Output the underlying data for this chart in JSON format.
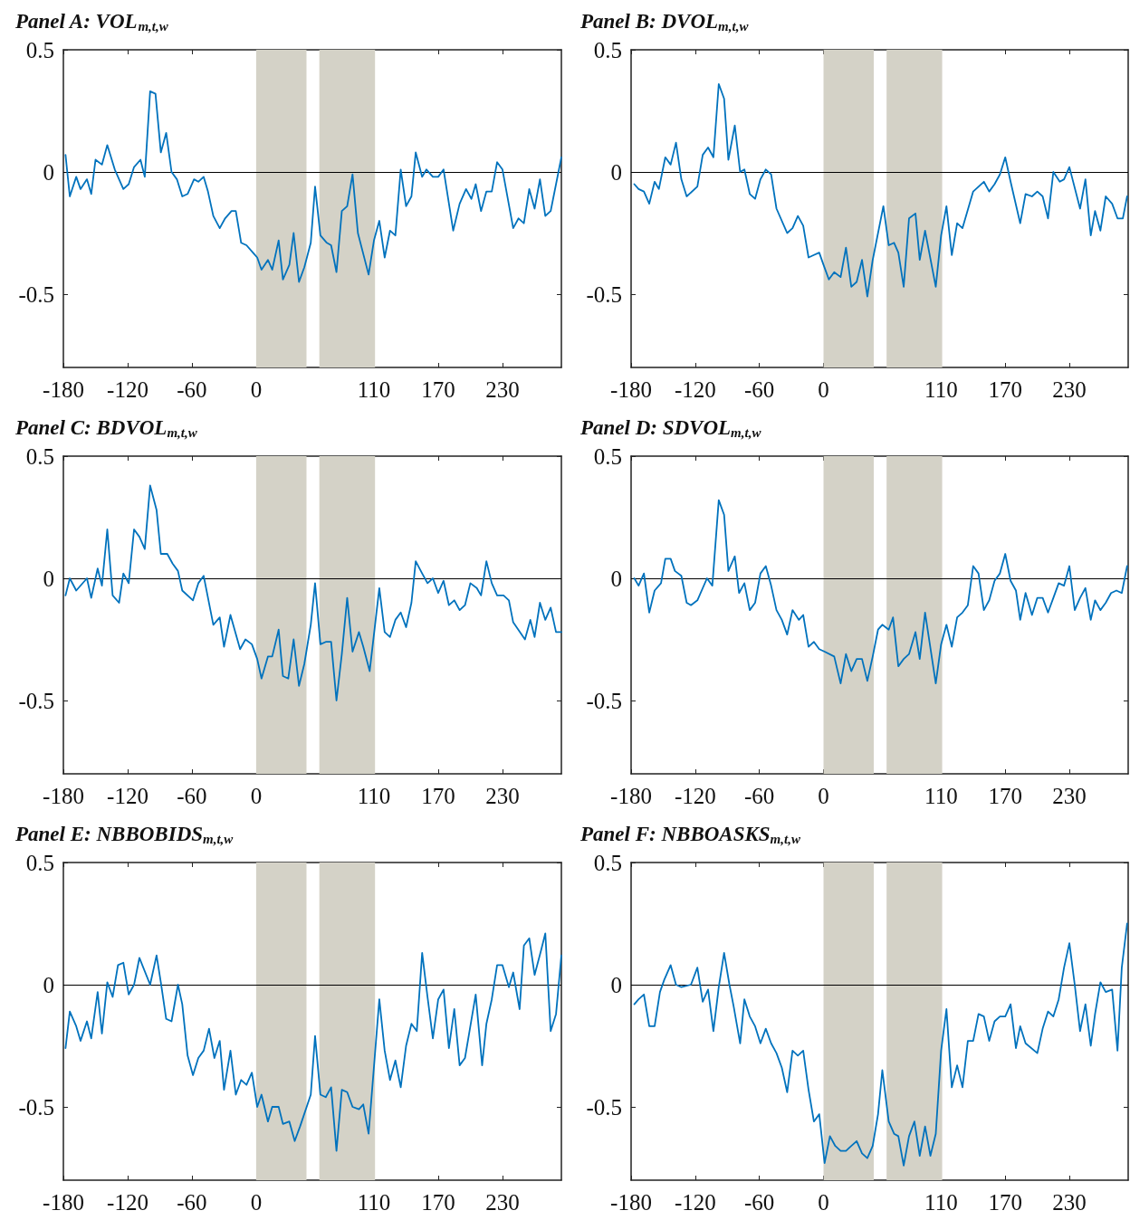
{
  "chart_data": [
    {
      "type": "line",
      "title": "Panel A: VOL$_{m,t,w}$",
      "xlim": [
        -180,
        285
      ],
      "xticks": [
        -180,
        -120,
        -60,
        0,
        110,
        170,
        230
      ],
      "ylim": [
        -0.8,
        0.5
      ],
      "yticks": [
        -0.5,
        0,
        0.5
      ],
      "marker": "none",
      "line_style": "solid",
      "ref_lines": [
        {
          "axis": "y",
          "value": 0,
          "color": "#000000"
        }
      ],
      "bands": [
        {
          "axis": "x",
          "from": 0,
          "to": 47,
          "color": "#d4d2c7"
        },
        {
          "axis": "x",
          "from": 59,
          "to": 111,
          "color": "#d4d2c7"
        }
      ],
      "series": [
        {
          "color": "#0072bd",
          "x": [
            -178,
            -174,
            -168,
            -164,
            -158,
            -154,
            -150,
            -144,
            -139,
            -132,
            -124,
            -119,
            -114,
            -108,
            -104,
            -99,
            -94,
            -89,
            -84,
            -79,
            -74,
            -69,
            -64,
            -58,
            -54,
            -49,
            -45,
            -40,
            -34,
            -29,
            -23,
            -19,
            -14,
            -9,
            -3,
            1,
            5,
            11,
            15,
            21,
            25,
            31,
            35,
            40,
            45,
            51,
            55,
            60,
            66,
            70,
            75,
            80,
            85,
            90,
            95,
            105,
            110,
            115,
            120,
            125,
            130,
            135,
            140,
            145,
            149,
            155,
            159,
            165,
            170,
            175,
            184,
            190,
            196,
            201,
            205,
            210,
            215,
            220,
            225,
            230,
            240,
            245,
            250,
            255,
            260,
            265,
            270,
            275,
            285
          ],
          "values": [
            0.07,
            -0.1,
            -0.02,
            -0.07,
            -0.03,
            -0.09,
            0.05,
            0.03,
            0.11,
            0.01,
            -0.07,
            -0.05,
            0.02,
            0.05,
            -0.02,
            0.33,
            0.32,
            0.08,
            0.16,
            0,
            -0.03,
            -0.1,
            -0.09,
            -0.03,
            -0.04,
            -0.02,
            -0.08,
            -0.18,
            -0.23,
            -0.19,
            -0.16,
            -0.16,
            -0.29,
            -0.3,
            -0.33,
            -0.35,
            -0.4,
            -0.36,
            -0.4,
            -0.28,
            -0.44,
            -0.38,
            -0.25,
            -0.45,
            -0.39,
            -0.29,
            -0.06,
            -0.26,
            -0.29,
            -0.3,
            -0.41,
            -0.16,
            -0.14,
            -0.01,
            -0.25,
            -0.42,
            -0.28,
            -0.2,
            -0.35,
            -0.24,
            -0.26,
            0.01,
            -0.14,
            -0.1,
            0.08,
            -0.02,
            0.01,
            -0.02,
            -0.02,
            0.01,
            -0.24,
            -0.13,
            -0.07,
            -0.11,
            -0.05,
            -0.16,
            -0.08,
            -0.08,
            0.04,
            0.01,
            -0.23,
            -0.19,
            -0.21,
            -0.07,
            -0.15,
            -0.03,
            -0.18,
            -0.16,
            0.06
          ]
        }
      ]
    },
    {
      "type": "line",
      "title": "Panel B: DVOL$_{m,t,w}$",
      "xlim": [
        -180,
        285
      ],
      "xticks": [
        -180,
        -120,
        -60,
        0,
        110,
        170,
        230
      ],
      "ylim": [
        -0.8,
        0.5
      ],
      "yticks": [
        -0.5,
        0,
        0.5
      ],
      "marker": "none",
      "line_style": "solid",
      "ref_lines": [
        {
          "axis": "y",
          "value": 0,
          "color": "#000000"
        }
      ],
      "bands": [
        {
          "axis": "x",
          "from": 0,
          "to": 47,
          "color": "#d4d2c7"
        },
        {
          "axis": "x",
          "from": 59,
          "to": 111,
          "color": "#d4d2c7"
        }
      ],
      "series": [
        {
          "color": "#0072bd",
          "x": [
            -177,
            -173,
            -168,
            -163,
            -158,
            -154,
            -148,
            -143,
            -138,
            -133,
            -128,
            -118,
            -113,
            -108,
            -103,
            -98,
            -93,
            -89,
            -83,
            -78,
            -74,
            -69,
            -64,
            -59,
            -54,
            -49,
            -44,
            -34,
            -29,
            -24,
            -19,
            -14,
            -9,
            -4,
            0,
            5,
            10,
            16,
            21,
            26,
            31,
            36,
            41,
            46,
            56,
            61,
            66,
            70,
            75,
            80,
            86,
            90,
            95,
            105,
            110,
            115,
            120,
            125,
            130,
            140,
            150,
            155,
            160,
            165,
            170,
            175,
            184,
            189,
            195,
            200,
            205,
            210,
            215,
            221,
            225,
            230,
            240,
            245,
            250,
            254,
            259,
            264,
            270,
            275,
            280,
            284
          ],
          "values": [
            -0.05,
            -0.07,
            -0.08,
            -0.13,
            -0.04,
            -0.07,
            0.06,
            0.03,
            0.12,
            -0.03,
            -0.1,
            -0.06,
            0.07,
            0.1,
            0.06,
            0.36,
            0.3,
            0.05,
            0.19,
            0,
            0.01,
            -0.09,
            -0.11,
            -0.03,
            0.01,
            -0.01,
            -0.15,
            -0.25,
            -0.23,
            -0.18,
            -0.22,
            -0.35,
            -0.34,
            -0.33,
            -0.38,
            -0.44,
            -0.41,
            -0.43,
            -0.31,
            -0.47,
            -0.45,
            -0.36,
            -0.51,
            -0.36,
            -0.14,
            -0.3,
            -0.29,
            -0.33,
            -0.47,
            -0.19,
            -0.17,
            -0.36,
            -0.24,
            -0.47,
            -0.26,
            -0.14,
            -0.34,
            -0.21,
            -0.23,
            -0.08,
            -0.04,
            -0.08,
            -0.05,
            -0.01,
            0.06,
            -0.04,
            -0.21,
            -0.09,
            -0.1,
            -0.08,
            -0.1,
            -0.19,
            0,
            -0.04,
            -0.03,
            0.02,
            -0.15,
            -0.03,
            -0.26,
            -0.16,
            -0.24,
            -0.1,
            -0.13,
            -0.19,
            -0.19,
            -0.1
          ]
        }
      ]
    },
    {
      "type": "line",
      "title": "Panel C: BDVOL$_{m,t,w}$",
      "xlim": [
        -180,
        285
      ],
      "xticks": [
        -180,
        -120,
        -60,
        0,
        110,
        170,
        230
      ],
      "ylim": [
        -0.8,
        0.5
      ],
      "yticks": [
        -0.5,
        0,
        0.5
      ],
      "marker": "none",
      "line_style": "solid",
      "ref_lines": [
        {
          "axis": "y",
          "value": 0,
          "color": "#000000"
        }
      ],
      "bands": [
        {
          "axis": "x",
          "from": 0,
          "to": 47,
          "color": "#d4d2c7"
        },
        {
          "axis": "x",
          "from": 59,
          "to": 111,
          "color": "#d4d2c7"
        }
      ],
      "series": [
        {
          "color": "#0072bd",
          "x": [
            -178,
            -174,
            -168,
            -158,
            -154,
            -148,
            -144,
            -139,
            -134,
            -128,
            -124,
            -119,
            -114,
            -109,
            -104,
            -99,
            -93,
            -89,
            -83,
            -78,
            -73,
            -69,
            -59,
            -54,
            -49,
            -40,
            -34,
            -30,
            -24,
            -15,
            -10,
            -4,
            1,
            5,
            11,
            15,
            21,
            25,
            30,
            35,
            40,
            45,
            51,
            55,
            60,
            65,
            70,
            75,
            80,
            85,
            90,
            96,
            100,
            106,
            115,
            120,
            125,
            130,
            135,
            140,
            145,
            149,
            155,
            160,
            165,
            170,
            175,
            180,
            185,
            190,
            195,
            200,
            206,
            210,
            215,
            220,
            225,
            231,
            236,
            240,
            251,
            256,
            260,
            265,
            270,
            275,
            280,
            285
          ],
          "values": [
            -0.07,
            0,
            -0.05,
            0,
            -0.08,
            0.04,
            -0.03,
            0.2,
            -0.07,
            -0.1,
            0.02,
            -0.02,
            0.2,
            0.17,
            0.12,
            0.38,
            0.28,
            0.1,
            0.1,
            0.06,
            0.03,
            -0.05,
            -0.09,
            -0.02,
            0.01,
            -0.19,
            -0.16,
            -0.28,
            -0.15,
            -0.29,
            -0.25,
            -0.27,
            -0.33,
            -0.41,
            -0.32,
            -0.32,
            -0.21,
            -0.4,
            -0.41,
            -0.25,
            -0.44,
            -0.35,
            -0.19,
            -0.02,
            -0.27,
            -0.26,
            -0.26,
            -0.5,
            -0.31,
            -0.08,
            -0.3,
            -0.22,
            -0.28,
            -0.38,
            -0.04,
            -0.22,
            -0.24,
            -0.17,
            -0.14,
            -0.2,
            -0.1,
            0.07,
            0.02,
            -0.02,
            0,
            -0.06,
            -0.01,
            -0.11,
            -0.09,
            -0.13,
            -0.11,
            -0.02,
            -0.04,
            -0.07,
            0.07,
            -0.02,
            -0.07,
            -0.07,
            -0.09,
            -0.18,
            -0.25,
            -0.17,
            -0.24,
            -0.1,
            -0.17,
            -0.12,
            -0.22,
            -0.22
          ]
        }
      ]
    },
    {
      "type": "line",
      "title": "Panel D: SDVOL$_{m,t,w}$",
      "xlim": [
        -180,
        285
      ],
      "xticks": [
        -180,
        -120,
        -60,
        0,
        110,
        170,
        230
      ],
      "ylim": [
        -0.8,
        0.5
      ],
      "yticks": [
        -0.5,
        0,
        0.5
      ],
      "marker": "none",
      "line_style": "solid",
      "ref_lines": [
        {
          "axis": "y",
          "value": 0,
          "color": "#000000"
        }
      ],
      "bands": [
        {
          "axis": "x",
          "from": 0,
          "to": 47,
          "color": "#d4d2c7"
        },
        {
          "axis": "x",
          "from": 59,
          "to": 111,
          "color": "#d4d2c7"
        }
      ],
      "series": [
        {
          "color": "#0072bd",
          "x": [
            -177,
            -173,
            -168,
            -163,
            -158,
            -152,
            -148,
            -143,
            -139,
            -133,
            -128,
            -124,
            -118,
            -109,
            -104,
            -98,
            -93,
            -89,
            -83,
            -79,
            -74,
            -69,
            -64,
            -59,
            -54,
            -49,
            -44,
            -39,
            -34,
            -29,
            -23,
            -19,
            -14,
            -9,
            -4,
            1,
            10,
            16,
            21,
            26,
            31,
            36,
            41,
            46,
            51,
            55,
            61,
            65,
            70,
            75,
            80,
            86,
            90,
            95,
            105,
            110,
            115,
            120,
            125,
            130,
            135,
            140,
            145,
            150,
            155,
            160,
            165,
            170,
            175,
            180,
            184,
            189,
            195,
            200,
            205,
            210,
            215,
            220,
            225,
            230,
            235,
            240,
            245,
            250,
            254,
            259,
            264,
            269,
            274,
            279,
            284
          ],
          "values": [
            0,
            -0.03,
            0.02,
            -0.14,
            -0.05,
            -0.02,
            0.08,
            0.08,
            0.03,
            0.01,
            -0.1,
            -0.11,
            -0.09,
            0,
            -0.03,
            0.32,
            0.26,
            0.03,
            0.09,
            -0.06,
            -0.02,
            -0.13,
            -0.1,
            0.02,
            0.05,
            -0.03,
            -0.13,
            -0.17,
            -0.23,
            -0.13,
            -0.17,
            -0.15,
            -0.28,
            -0.26,
            -0.29,
            -0.3,
            -0.32,
            -0.43,
            -0.31,
            -0.38,
            -0.33,
            -0.33,
            -0.42,
            -0.32,
            -0.21,
            -0.19,
            -0.21,
            -0.16,
            -0.36,
            -0.33,
            -0.31,
            -0.22,
            -0.33,
            -0.14,
            -0.43,
            -0.27,
            -0.19,
            -0.28,
            -0.16,
            -0.14,
            -0.11,
            0.05,
            0.02,
            -0.13,
            -0.09,
            -0.01,
            0.02,
            0.1,
            -0.01,
            -0.05,
            -0.17,
            -0.06,
            -0.15,
            -0.08,
            -0.08,
            -0.14,
            -0.08,
            -0.02,
            -0.03,
            0.05,
            -0.13,
            -0.08,
            -0.04,
            -0.17,
            -0.09,
            -0.13,
            -0.1,
            -0.06,
            -0.05,
            -0.06,
            0.05
          ]
        }
      ]
    },
    {
      "type": "line",
      "title": "Panel E: NBBOBIDS$_{m,t,w}$",
      "xlim": [
        -180,
        285
      ],
      "xticks": [
        -180,
        -120,
        -60,
        0,
        110,
        170,
        230
      ],
      "ylim": [
        -0.8,
        0.5
      ],
      "yticks": [
        -0.5,
        0,
        0.5
      ],
      "marker": "none",
      "line_style": "solid",
      "ref_lines": [
        {
          "axis": "y",
          "value": 0,
          "color": "#000000"
        }
      ],
      "bands": [
        {
          "axis": "x",
          "from": 0,
          "to": 47,
          "color": "#d4d2c7"
        },
        {
          "axis": "x",
          "from": 59,
          "to": 111,
          "color": "#d4d2c7"
        }
      ],
      "series": [
        {
          "color": "#0072bd",
          "x": [
            -178,
            -174,
            -168,
            -164,
            -158,
            -154,
            -148,
            -144,
            -139,
            -134,
            -129,
            -124,
            -119,
            -114,
            -109,
            -99,
            -93,
            -89,
            -84,
            -79,
            -73,
            -69,
            -64,
            -59,
            -54,
            -49,
            -44,
            -39,
            -34,
            -30,
            -24,
            -19,
            -14,
            -9,
            -4,
            1,
            5,
            11,
            15,
            21,
            25,
            31,
            36,
            41,
            51,
            55,
            60,
            65,
            70,
            75,
            80,
            85,
            90,
            96,
            100,
            105,
            115,
            120,
            125,
            130,
            135,
            140,
            145,
            150,
            155,
            160,
            165,
            170,
            175,
            180,
            185,
            190,
            195,
            200,
            205,
            211,
            215,
            220,
            225,
            230,
            236,
            240,
            246,
            250,
            255,
            260,
            266,
            270,
            275,
            280,
            285
          ],
          "values": [
            -0.26,
            -0.11,
            -0.17,
            -0.23,
            -0.15,
            -0.22,
            -0.03,
            -0.2,
            0.01,
            -0.05,
            0.08,
            0.09,
            -0.04,
            0,
            0.11,
            0,
            0.12,
            0.01,
            -0.14,
            -0.15,
            0,
            -0.08,
            -0.29,
            -0.37,
            -0.3,
            -0.27,
            -0.18,
            -0.3,
            -0.23,
            -0.43,
            -0.27,
            -0.45,
            -0.39,
            -0.41,
            -0.36,
            -0.5,
            -0.45,
            -0.56,
            -0.5,
            -0.5,
            -0.57,
            -0.56,
            -0.64,
            -0.58,
            -0.45,
            -0.21,
            -0.45,
            -0.46,
            -0.42,
            -0.68,
            -0.43,
            -0.44,
            -0.5,
            -0.51,
            -0.49,
            -0.61,
            -0.06,
            -0.27,
            -0.39,
            -0.31,
            -0.42,
            -0.25,
            -0.16,
            -0.19,
            0.13,
            -0.05,
            -0.22,
            -0.06,
            -0.02,
            -0.26,
            -0.1,
            -0.33,
            -0.3,
            -0.17,
            -0.04,
            -0.33,
            -0.16,
            -0.06,
            0.08,
            0.08,
            -0.01,
            0.05,
            -0.1,
            0.16,
            0.19,
            0.04,
            0.14,
            0.21,
            -0.19,
            -0.12,
            0.12
          ]
        }
      ]
    },
    {
      "type": "line",
      "title": "Panel F: NBBOASKS$_{m,t,w}$",
      "xlim": [
        -180,
        285
      ],
      "xticks": [
        -180,
        -120,
        -60,
        0,
        110,
        170,
        230
      ],
      "ylim": [
        -0.8,
        0.5
      ],
      "yticks": [
        -0.5,
        0,
        0.5
      ],
      "marker": "none",
      "line_style": "solid",
      "ref_lines": [
        {
          "axis": "y",
          "value": 0,
          "color": "#000000"
        }
      ],
      "bands": [
        {
          "axis": "x",
          "from": 0,
          "to": 47,
          "color": "#d4d2c7"
        },
        {
          "axis": "x",
          "from": 59,
          "to": 111,
          "color": "#d4d2c7"
        }
      ],
      "series": [
        {
          "color": "#0072bd",
          "x": [
            -177,
            -173,
            -168,
            -163,
            -158,
            -153,
            -149,
            -143,
            -138,
            -133,
            -124,
            -118,
            -113,
            -108,
            -103,
            -98,
            -93,
            -88,
            -84,
            -78,
            -74,
            -69,
            -64,
            -59,
            -54,
            -49,
            -44,
            -39,
            -34,
            -29,
            -24,
            -19,
            -14,
            -9,
            -4,
            1,
            6,
            11,
            16,
            21,
            26,
            31,
            36,
            41,
            46,
            51,
            55,
            61,
            66,
            70,
            75,
            80,
            85,
            90,
            95,
            100,
            105,
            110,
            115,
            120,
            125,
            130,
            135,
            140,
            145,
            150,
            155,
            160,
            165,
            170,
            175,
            180,
            184,
            189,
            200,
            205,
            210,
            215,
            220,
            225,
            230,
            235,
            240,
            245,
            250,
            254,
            259,
            264,
            270,
            275,
            279,
            284
          ],
          "values": [
            -0.08,
            -0.06,
            -0.04,
            -0.17,
            -0.17,
            -0.03,
            0.02,
            0.08,
            0,
            -0.01,
            0,
            0.07,
            -0.07,
            -0.02,
            -0.19,
            -0.01,
            0.13,
            0,
            -0.09,
            -0.24,
            -0.06,
            -0.13,
            -0.17,
            -0.24,
            -0.18,
            -0.24,
            -0.28,
            -0.34,
            -0.44,
            -0.27,
            -0.29,
            -0.27,
            -0.43,
            -0.56,
            -0.53,
            -0.73,
            -0.62,
            -0.66,
            -0.68,
            -0.68,
            -0.66,
            -0.64,
            -0.69,
            -0.71,
            -0.66,
            -0.53,
            -0.35,
            -0.56,
            -0.61,
            -0.62,
            -0.74,
            -0.62,
            -0.56,
            -0.7,
            -0.58,
            -0.7,
            -0.61,
            -0.27,
            -0.1,
            -0.42,
            -0.33,
            -0.42,
            -0.23,
            -0.23,
            -0.12,
            -0.13,
            -0.23,
            -0.15,
            -0.13,
            -0.13,
            -0.08,
            -0.26,
            -0.17,
            -0.24,
            -0.28,
            -0.18,
            -0.11,
            -0.13,
            -0.06,
            0.07,
            0.17,
            0,
            -0.19,
            -0.08,
            -0.25,
            -0.12,
            0.01,
            -0.03,
            -0.02,
            -0.27,
            0.07,
            0.25
          ]
        }
      ]
    }
  ]
}
